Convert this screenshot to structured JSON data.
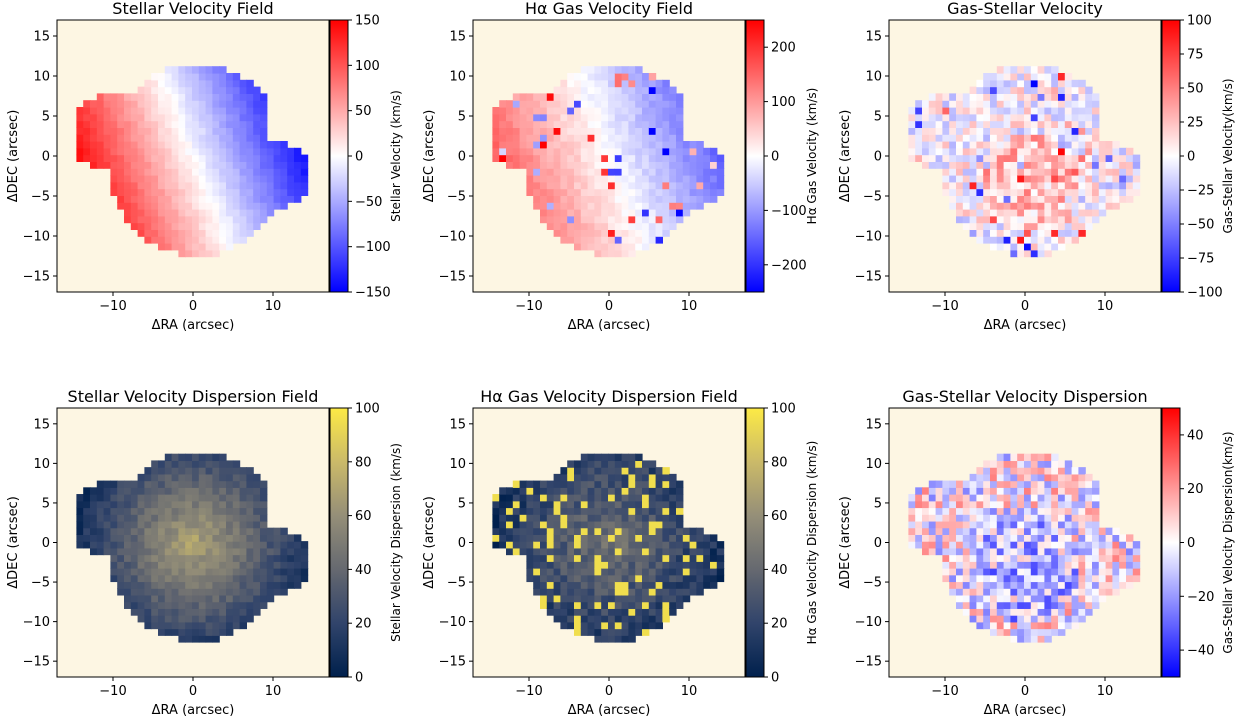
{
  "chart_data": [
    {
      "type": "heatmap",
      "title": "Stellar Velocity Field",
      "xlabel": "ΔRA (arcsec)",
      "ylabel": "ΔDEC (arcsec)",
      "cbar_label": "Stellar Velocity (km/s)",
      "xlim": [
        -17,
        17
      ],
      "ylim": [
        -17,
        17
      ],
      "xticks": [
        -10,
        0,
        10
      ],
      "yticks": [
        -15,
        -10,
        -5,
        0,
        5,
        10,
        15
      ],
      "clim": [
        -150,
        150
      ],
      "cbar_ticks": [
        -150,
        -100,
        -50,
        0,
        50,
        100,
        150
      ],
      "cmap": "bwr",
      "field": "stellar_velocity",
      "background": "#fdf6e3"
    },
    {
      "type": "heatmap",
      "title": "Hα Gas Velocity Field",
      "xlabel": "ΔRA (arcsec)",
      "ylabel": "ΔDEC (arcsec)",
      "cbar_label": "Hα Gas Velocity (km/s)",
      "xlim": [
        -17,
        17
      ],
      "ylim": [
        -17,
        17
      ],
      "xticks": [
        -10,
        0,
        10
      ],
      "yticks": [
        -15,
        -10,
        -5,
        0,
        5,
        10,
        15
      ],
      "clim": [
        -250,
        250
      ],
      "cbar_ticks": [
        -200,
        -100,
        0,
        100,
        200
      ],
      "cmap": "bwr",
      "field": "gas_velocity",
      "background": "#fdf6e3"
    },
    {
      "type": "heatmap",
      "title": "Gas-Stellar Velocity",
      "xlabel": "ΔRA (arcsec)",
      "ylabel": "ΔDEC (arcsec)",
      "cbar_label": "Gas-Stellar Velocity(km/s)",
      "xlim": [
        -17,
        17
      ],
      "ylim": [
        -17,
        17
      ],
      "xticks": [
        -10,
        0,
        10
      ],
      "yticks": [
        -15,
        -10,
        -5,
        0,
        5,
        10,
        15
      ],
      "clim": [
        -100,
        100
      ],
      "cbar_ticks": [
        -100,
        -75,
        -50,
        -25,
        0,
        25,
        50,
        75,
        100
      ],
      "cmap": "bwr",
      "field": "velocity_difference",
      "background": "#fdf6e3"
    },
    {
      "type": "heatmap",
      "title": "Stellar Velocity Dispersion Field",
      "xlabel": "ΔRA (arcsec)",
      "ylabel": "ΔDEC (arcsec)",
      "cbar_label": "Stellar Velocity Dispersion (km/s)",
      "xlim": [
        -17,
        17
      ],
      "ylim": [
        -17,
        17
      ],
      "xticks": [
        -10,
        0,
        10
      ],
      "yticks": [
        -15,
        -10,
        -5,
        0,
        5,
        10,
        15
      ],
      "clim": [
        0,
        100
      ],
      "cbar_ticks": [
        0,
        20,
        40,
        60,
        80,
        100
      ],
      "cmap": "cividis",
      "field": "stellar_dispersion",
      "background": "#fdf6e3"
    },
    {
      "type": "heatmap",
      "title": "Hα Gas Velocity Dispersion Field",
      "xlabel": "ΔRA (arcsec)",
      "ylabel": "ΔDEC (arcsec)",
      "cbar_label": "Hα Gas Velocity Dispersion (km/s)",
      "xlim": [
        -17,
        17
      ],
      "ylim": [
        -17,
        17
      ],
      "xticks": [
        -10,
        0,
        10
      ],
      "yticks": [
        -15,
        -10,
        -5,
        0,
        5,
        10,
        15
      ],
      "clim": [
        0,
        100
      ],
      "cbar_ticks": [
        0,
        20,
        40,
        60,
        80,
        100
      ],
      "cmap": "cividis",
      "field": "gas_dispersion",
      "background": "#fdf6e3"
    },
    {
      "type": "heatmap",
      "title": "Gas-Stellar Velocity Dispersion",
      "xlabel": "ΔRA (arcsec)",
      "ylabel": "ΔDEC (arcsec)",
      "cbar_label": "Gas-Stellar Velocity Dispersion(km/s)",
      "xlim": [
        -17,
        17
      ],
      "ylim": [
        -17,
        17
      ],
      "xticks": [
        -10,
        0,
        10
      ],
      "yticks": [
        -15,
        -10,
        -5,
        0,
        5,
        10,
        15
      ],
      "clim": [
        -50,
        50
      ],
      "cbar_ticks": [
        -40,
        -20,
        0,
        20,
        40
      ],
      "cmap": "bwr",
      "field": "dispersion_difference",
      "background": "#fdf6e3"
    }
  ]
}
